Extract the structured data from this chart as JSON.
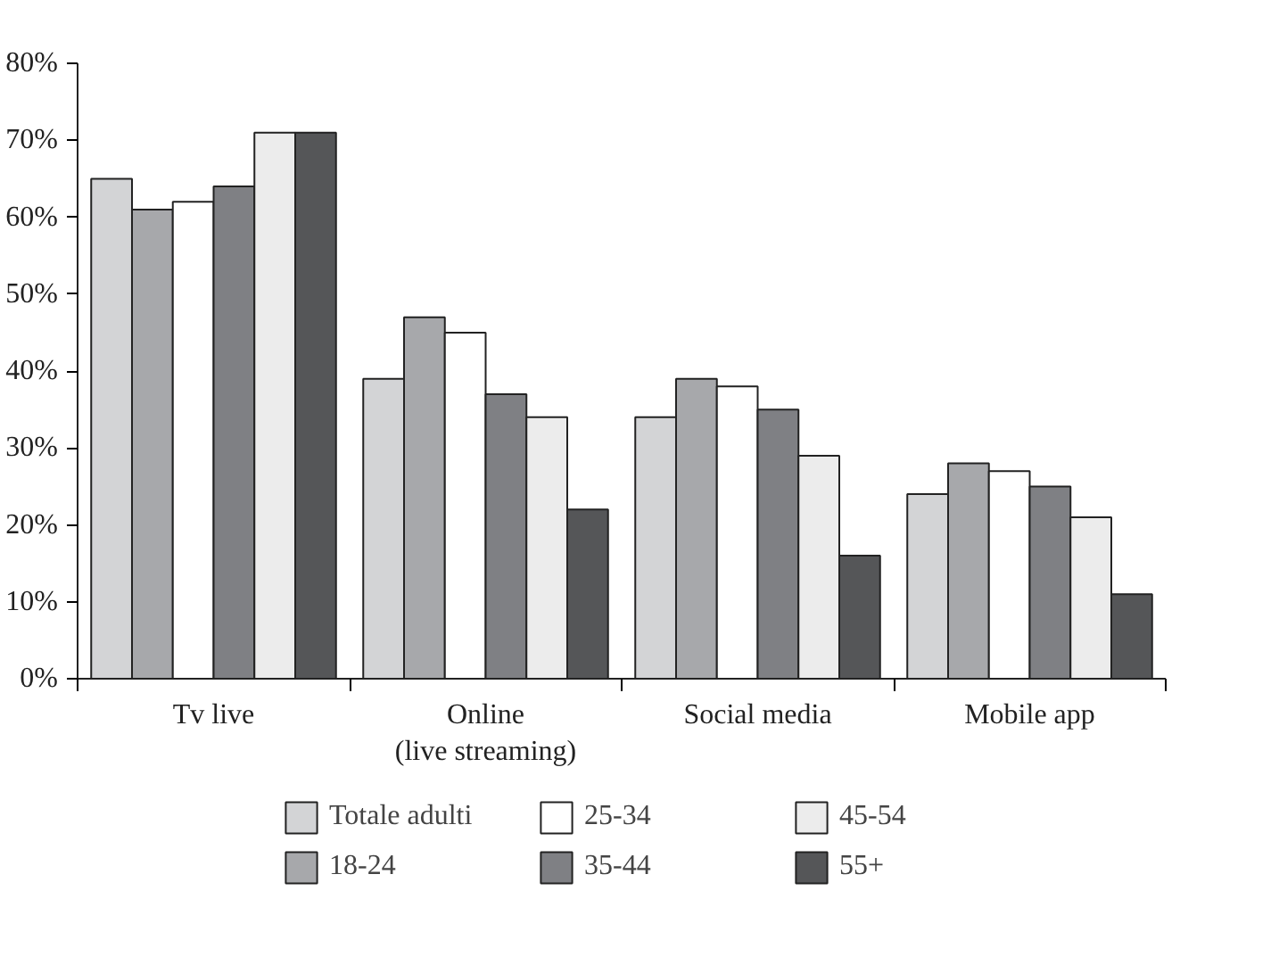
{
  "chart_data": {
    "type": "bar",
    "categories": [
      "Tv live",
      "Online\n(live streaming)",
      "Social media",
      "Mobile app"
    ],
    "series": [
      {
        "name": "Totale adulti",
        "color": "#d3d4d6",
        "values": [
          65,
          39,
          34,
          24
        ]
      },
      {
        "name": "18-24",
        "color": "#a7a8ab",
        "values": [
          61,
          47,
          39,
          28
        ]
      },
      {
        "name": "25-34",
        "color": "#ffffff",
        "values": [
          62,
          45,
          38,
          27
        ]
      },
      {
        "name": "35-44",
        "color": "#7f8084",
        "values": [
          64,
          37,
          35,
          25
        ]
      },
      {
        "name": "45-54",
        "color": "#ececec",
        "values": [
          71,
          34,
          29,
          21
        ]
      },
      {
        "name": "55+",
        "color": "#555658",
        "values": [
          71,
          22,
          16,
          11
        ]
      }
    ],
    "ylim": [
      0,
      80
    ],
    "yticks": [
      {
        "value": 0,
        "label": "0%"
      },
      {
        "value": 10,
        "label": "10%"
      },
      {
        "value": 20,
        "label": "20%"
      },
      {
        "value": 30,
        "label": "30%"
      },
      {
        "value": 40,
        "label": "40%"
      },
      {
        "value": 50,
        "label": "50%"
      },
      {
        "value": 60,
        "label": "60%"
      },
      {
        "value": 70,
        "label": "70%"
      },
      {
        "value": 80,
        "label": "80%"
      }
    ],
    "grid": false,
    "legend": "bottom"
  }
}
